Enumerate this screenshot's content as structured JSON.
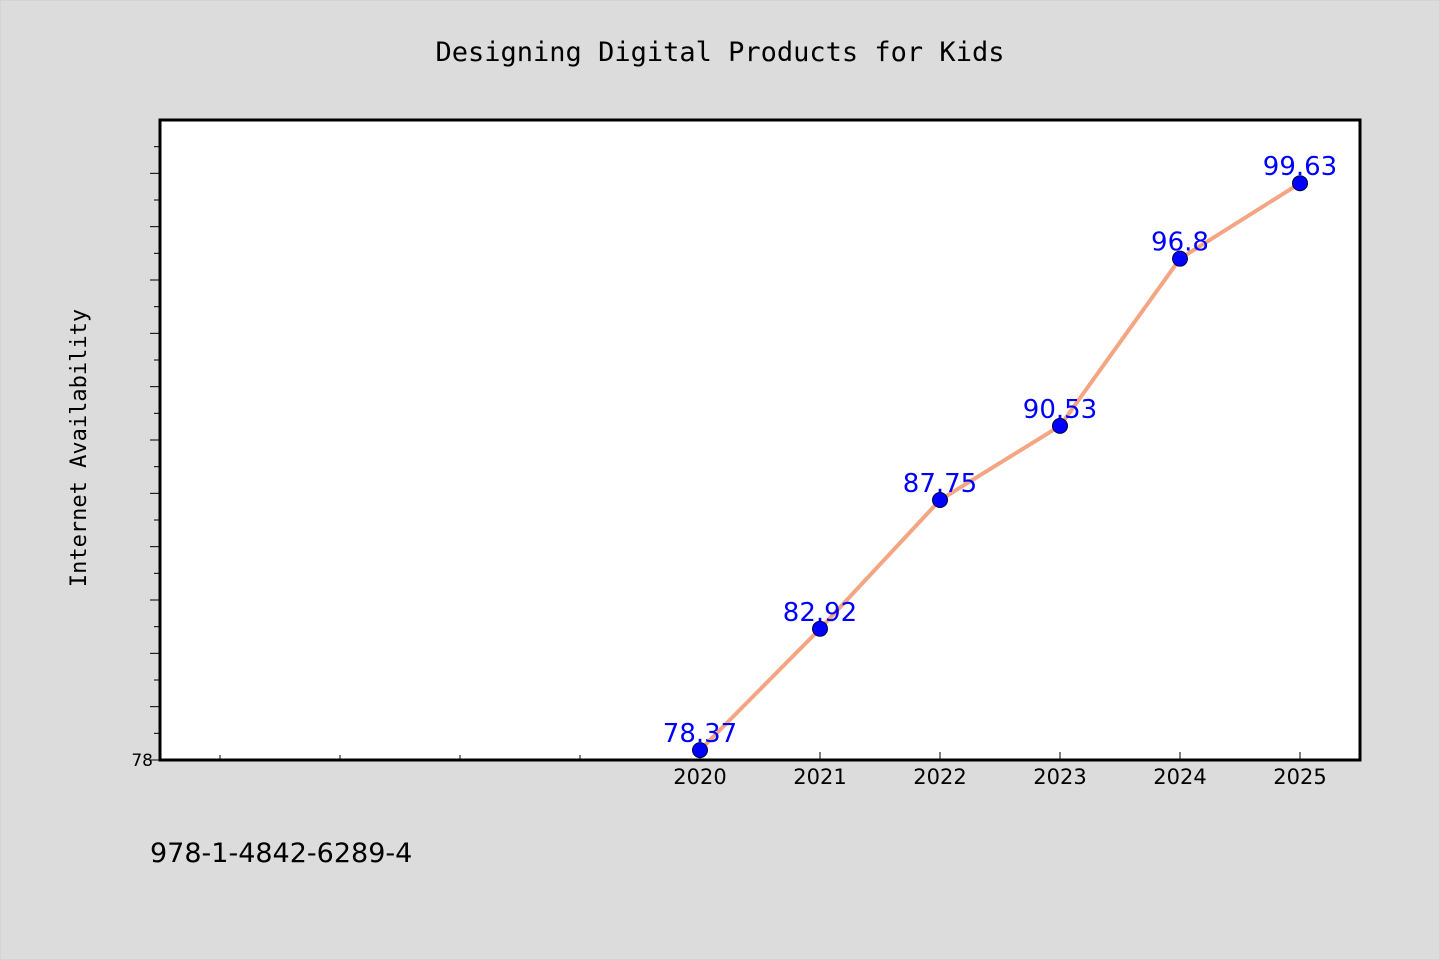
{
  "chart_data": {
    "type": "line",
    "title": "Designing Digital Products for Kids",
    "xlabel": "",
    "ylabel": "Internet Availability",
    "x": [
      "2020",
      "2021",
      "2022",
      "2023",
      "2024",
      "2025"
    ],
    "series": [
      {
        "values": [
          78.37,
          82.92,
          87.75,
          90.53,
          96.8,
          99.63
        ],
        "labels": [
          "78.37",
          "82.92",
          "87.75",
          "90.53",
          "96.8",
          "99.63"
        ],
        "line_color": "#f4a582",
        "marker_color": "#0000ff",
        "label_color": "#0000ff"
      }
    ],
    "yticks": [
      {
        "value": 78,
        "label": "78"
      }
    ],
    "ylim": [
      78,
      102.0
    ],
    "x_domain": [
      2015.5,
      2025.5
    ],
    "x_minor_ticks": [
      2016,
      2017,
      2018,
      2019
    ],
    "y_minor_step": 1,
    "grid": false,
    "legend": "none",
    "footer_text": "978-1-4842-6289-4"
  },
  "colors": {
    "background": "#dcdcdc",
    "plot_background": "#ffffff",
    "frame": "#000000"
  }
}
